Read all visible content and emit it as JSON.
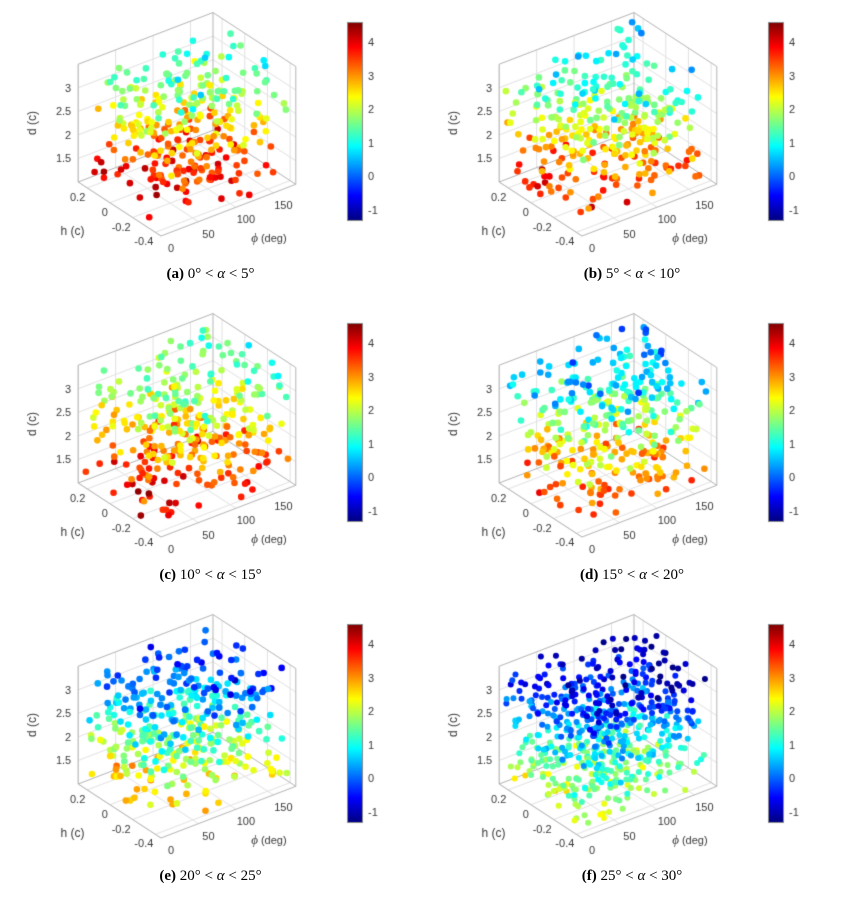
{
  "style": {
    "background": "#ffffff",
    "tick_color": "#3a3a3a",
    "grid_color": "#e2e2e2",
    "box_color": "#b5b5b5",
    "colormap": "jet"
  },
  "chart_data": [
    {
      "id": "a",
      "type": "scatter3d",
      "caption_label": "(a)",
      "caption_pre": " 0° < ",
      "caption_symbol": "α",
      "caption_post": " < 5°",
      "xlabel_symbol": "ϕ",
      "xlabel_unit": " (deg)",
      "ylabel": "h (c)",
      "zlabel": "d (c)",
      "x_ticks": [
        0,
        50,
        100,
        150
      ],
      "y_ticks": [
        0.2,
        0,
        -0.2,
        -0.4
      ],
      "z_ticks": [
        1.5,
        2,
        2.5,
        3
      ],
      "xlim": [
        0,
        180
      ],
      "ylim": [
        -0.45,
        0.28
      ],
      "zlim": [
        1,
        3.5
      ],
      "colorbar_ticks": [
        -1,
        0,
        1,
        2,
        3,
        4
      ],
      "clim": [
        -1.3,
        4.6
      ],
      "colormap": "jet",
      "n_points": 330,
      "seed": 101,
      "color_model": {
        "base": 4.4,
        "slope_d": -3.1,
        "slope_phi": -0.5,
        "noise": 0.5
      },
      "color_pattern": "dark red points near the bottom of the box fading to cyan/green/yellow near the top"
    },
    {
      "id": "b",
      "type": "scatter3d",
      "caption_label": "(b)",
      "caption_pre": " 5° < ",
      "caption_symbol": "α",
      "caption_post": " < 10°",
      "xlabel_symbol": "ϕ",
      "xlabel_unit": " (deg)",
      "ylabel": "h (c)",
      "zlabel": "d (c)",
      "x_ticks": [
        0,
        50,
        100,
        150
      ],
      "y_ticks": [
        0.2,
        0,
        -0.2,
        -0.4
      ],
      "z_ticks": [
        1.5,
        2,
        2.5,
        3
      ],
      "xlim": [
        0,
        180
      ],
      "ylim": [
        -0.45,
        0.28
      ],
      "zlim": [
        1,
        3.5
      ],
      "colorbar_ticks": [
        -1,
        0,
        1,
        2,
        3,
        4
      ],
      "clim": [
        -1.3,
        4.6
      ],
      "colormap": "jet",
      "n_points": 330,
      "seed": 202,
      "color_model": {
        "base": 4.1,
        "slope_d": -3.3,
        "slope_phi": -0.5,
        "noise": 0.5
      },
      "color_pattern": "red/orange bottom, cyan top"
    },
    {
      "id": "c",
      "type": "scatter3d",
      "caption_label": "(c)",
      "caption_pre": " 10° < ",
      "caption_symbol": "α",
      "caption_post": " < 15°",
      "xlabel_symbol": "ϕ",
      "xlabel_unit": " (deg)",
      "ylabel": "h (c)",
      "zlabel": "d (c)",
      "x_ticks": [
        0,
        50,
        100,
        150
      ],
      "y_ticks": [
        0.2,
        0,
        -0.2,
        -0.4
      ],
      "z_ticks": [
        1.5,
        2,
        2.5,
        3
      ],
      "xlim": [
        0,
        180
      ],
      "ylim": [
        -0.45,
        0.28
      ],
      "zlim": [
        1,
        3.5
      ],
      "colorbar_ticks": [
        -1,
        0,
        1,
        2,
        3,
        4
      ],
      "clim": [
        -1.3,
        4.6
      ],
      "colormap": "jet",
      "n_points": 340,
      "seed": 303,
      "color_model": {
        "base": 4.1,
        "slope_d": -2.7,
        "slope_phi": -0.4,
        "noise": 0.55
      },
      "color_pattern": "red bottom, mixed green/cyan/yellow top"
    },
    {
      "id": "d",
      "type": "scatter3d",
      "caption_label": "(d)",
      "caption_pre": " 15° < ",
      "caption_symbol": "α",
      "caption_post": " < 20°",
      "xlabel_symbol": "ϕ",
      "xlabel_unit": " (deg)",
      "ylabel": "h (c)",
      "zlabel": "d (c)",
      "x_ticks": [
        0,
        50,
        100,
        150
      ],
      "y_ticks": [
        0.2,
        0,
        -0.2,
        -0.4
      ],
      "z_ticks": [
        1.5,
        2,
        2.5,
        3
      ],
      "xlim": [
        0,
        180
      ],
      "ylim": [
        -0.45,
        0.28
      ],
      "zlim": [
        1,
        3.5
      ],
      "colorbar_ticks": [
        -1,
        0,
        1,
        2,
        3,
        4
      ],
      "clim": [
        -1.3,
        4.6
      ],
      "colormap": "jet",
      "n_points": 360,
      "seed": 404,
      "color_model": {
        "base": 3.9,
        "slope_d": -3.5,
        "slope_phi": -0.5,
        "noise": 0.55
      },
      "color_pattern": "red/orange bottom, blue/cyan top"
    },
    {
      "id": "e",
      "type": "scatter3d",
      "caption_label": "(e)",
      "caption_pre": " 20° < ",
      "caption_symbol": "α",
      "caption_post": " < 25°",
      "xlabel_symbol": "ϕ",
      "xlabel_unit": " (deg)",
      "ylabel": "h (c)",
      "zlabel": "d (c)",
      "x_ticks": [
        0,
        50,
        100,
        150
      ],
      "y_ticks": [
        0.2,
        0,
        -0.2,
        -0.4
      ],
      "z_ticks": [
        1.5,
        2,
        2.5,
        3
      ],
      "xlim": [
        0,
        180
      ],
      "ylim": [
        -0.45,
        0.28
      ],
      "zlim": [
        1,
        3.5
      ],
      "colorbar_ticks": [
        -1,
        0,
        1,
        2,
        3,
        4
      ],
      "clim": [
        -1.3,
        4.6
      ],
      "colormap": "jet",
      "n_points": 390,
      "seed": 505,
      "color_model": {
        "base": 3.1,
        "slope_d": -3.4,
        "slope_phi": -0.4,
        "noise": 0.5
      },
      "color_pattern": "orange/yellow bottom, blue top"
    },
    {
      "id": "f",
      "type": "scatter3d",
      "caption_label": "(f)",
      "caption_pre": " 25° < ",
      "caption_symbol": "α",
      "caption_post": " < 30°",
      "xlabel_symbol": "ϕ",
      "xlabel_unit": " (deg)",
      "ylabel": "h (c)",
      "zlabel": "d (c)",
      "x_ticks": [
        0,
        50,
        100,
        150
      ],
      "y_ticks": [
        0.2,
        0,
        -0.2,
        -0.4
      ],
      "z_ticks": [
        1.5,
        2,
        2.5,
        3
      ],
      "xlim": [
        0,
        180
      ],
      "ylim": [
        -0.45,
        0.28
      ],
      "zlim": [
        1,
        3.5
      ],
      "colorbar_ticks": [
        -1,
        0,
        1,
        2,
        3,
        4
      ],
      "clim": [
        -1.3,
        4.6
      ],
      "colormap": "jet",
      "n_points": 620,
      "seed": 606,
      "color_model": {
        "base": 2.4,
        "slope_d": -3.3,
        "slope_phi": -0.5,
        "noise": 0.5
      },
      "color_pattern": "green/yellow bottom, dark blue top, denser point cloud"
    }
  ]
}
